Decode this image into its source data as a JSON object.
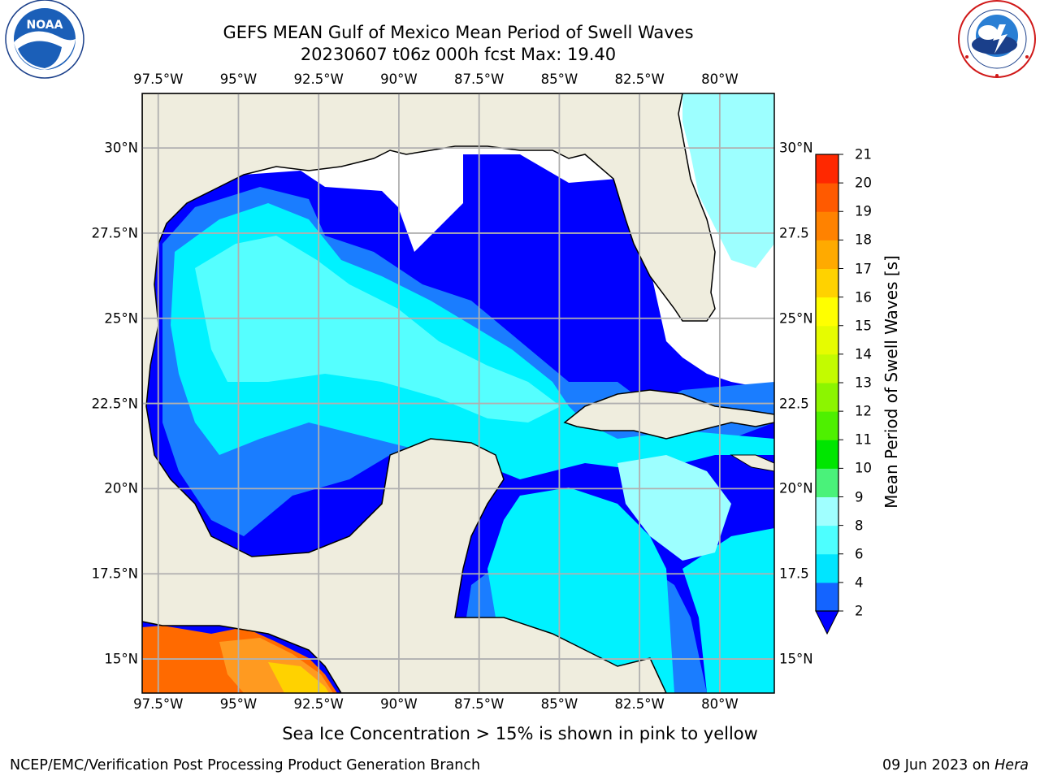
{
  "title": {
    "line1": "GEFS MEAN Gulf of Mexico Mean Period of Swell Waves",
    "line2": "20230607 t06z 000h fcst   Max: 19.40"
  },
  "logos": {
    "noara": {
      "text": "NOAA",
      "ring_text": "NATIONAL OCEANIC AND ATMOSPHERIC ADMINISTRATION · U.S. DEPARTMENT OF COMMERCE"
    },
    "nws": {
      "ring_text": "NATIONAL WEATHER SERVICE"
    }
  },
  "map": {
    "lon_ticks": [
      "97.5°W",
      "95°W",
      "92.5°W",
      "90°W",
      "87.5°W",
      "85°W",
      "82.5°W",
      "80°W"
    ],
    "lat_ticks_left": [
      "30°N",
      "27.5°N",
      "25°N",
      "22.5°N",
      "20°N",
      "17.5°N",
      "15°N"
    ],
    "lat_ticks_right": [
      "30°N",
      "27.5",
      "25°N",
      "22.5",
      "20°N",
      "17.5",
      "15°N"
    ],
    "lon_values": [
      -97.5,
      -95,
      -92.5,
      -90,
      -87.5,
      -85,
      -82.5,
      -80
    ],
    "lat_values": [
      30,
      27.5,
      25,
      22.5,
      20,
      17.5,
      15
    ],
    "lon_range": [
      -98,
      -78.3
    ],
    "lat_range": [
      14,
      31.6
    ],
    "land_color": "#efedde",
    "grid_color": "#b0b0b0"
  },
  "colorbar": {
    "label": "Mean Period of Swell Waves [s]",
    "ticks": [
      "2",
      "4",
      "6",
      "8",
      "9",
      "10",
      "11",
      "12",
      "13",
      "14",
      "15",
      "16",
      "17",
      "18",
      "19",
      "20",
      "21"
    ],
    "levels": [
      2,
      4,
      6,
      8,
      9,
      10,
      11,
      12,
      13,
      14,
      15,
      16,
      17,
      18,
      19,
      20,
      21
    ],
    "colors": [
      "#1464ff",
      "#00e5ff",
      "#4dffff",
      "#a0ffff",
      "#4af27a",
      "#00e600",
      "#4ef000",
      "#8cf500",
      "#c3fb00",
      "#e6fc00",
      "#ffff00",
      "#ffd200",
      "#ffaa00",
      "#ff8200",
      "#ff5a00",
      "#ff2800"
    ],
    "under_color": "#0000ff"
  },
  "legend": {
    "palette": {
      "very_low": "#0000ff",
      "low": "#1a7dff",
      "mid": "#00f2ff",
      "high": "#55ffff",
      "higher": "#9dffff",
      "hot": "#ff6a00",
      "warm": "#ff9a20"
    }
  },
  "caption": "Sea Ice Concentration > 15% is shown in pink to yellow",
  "footer": {
    "left": "NCEP/EMC/Verification Post Processing Product Generation Branch",
    "right_date": "09 Jun 2023 on ",
    "right_host": "Hera"
  }
}
